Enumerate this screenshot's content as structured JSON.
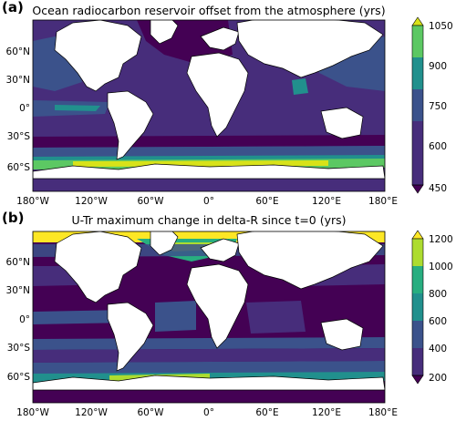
{
  "panels": [
    {
      "label": "(a)",
      "title": "Ocean radiocarbon reservoir offset from the atmosphere (yrs)",
      "lat_ticks": [
        "60°N",
        "30°N",
        "0°",
        "30°S",
        "60°S"
      ],
      "colorbar": {
        "ticks": [
          "1050",
          "900",
          "750",
          "600",
          "450"
        ],
        "colors": [
          "#d8e219",
          "#5cc863",
          "#21908d",
          "#3b528b",
          "#472d7b",
          "#440154"
        ]
      }
    },
    {
      "label": "(b)",
      "title": "U-Tr maximum change in delta-R since t=0 (yrs)",
      "lat_ticks": [
        "60°N",
        "30°N",
        "0°",
        "30°S",
        "60°S"
      ],
      "lon_ticks": [
        "180°W",
        "120°W",
        "60°W",
        "0°",
        "60°E",
        "120°E",
        "180°E"
      ],
      "colorbar": {
        "ticks": [
          "1200",
          "1000",
          "800",
          "600",
          "400",
          "200"
        ],
        "colors": [
          "#fde725",
          "#addc30",
          "#28ae80",
          "#21908d",
          "#3b528b",
          "#472d7b",
          "#440154"
        ]
      }
    }
  ],
  "shared_lon_ticks": [
    "180°W",
    "120°W",
    "60°W",
    "0°",
    "60°E",
    "120°E",
    "180°E"
  ]
}
